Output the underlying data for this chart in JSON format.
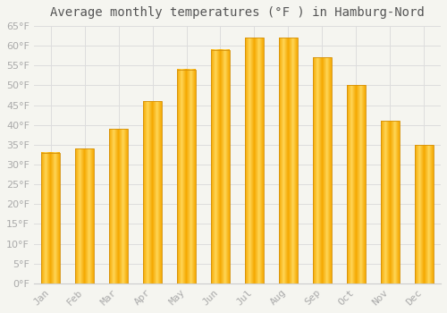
{
  "title": "Average monthly temperatures (°F ) in Hamburg-Nord",
  "months": [
    "Jan",
    "Feb",
    "Mar",
    "Apr",
    "May",
    "Jun",
    "Jul",
    "Aug",
    "Sep",
    "Oct",
    "Nov",
    "Dec"
  ],
  "values": [
    33,
    34,
    39,
    46,
    54,
    59,
    62,
    62,
    57,
    50,
    41,
    35
  ],
  "bar_color_center": "#FFD050",
  "bar_color_edge": "#F5A800",
  "background_color": "#F5F5F0",
  "plot_bg_color": "#F5F5F0",
  "grid_color": "#DDDDDD",
  "ylim": [
    0,
    65
  ],
  "yticks": [
    0,
    5,
    10,
    15,
    20,
    25,
    30,
    35,
    40,
    45,
    50,
    55,
    60,
    65
  ],
  "title_fontsize": 10,
  "tick_fontsize": 8,
  "tick_color": "#AAAAAA",
  "title_color": "#555555",
  "bar_width": 0.55
}
